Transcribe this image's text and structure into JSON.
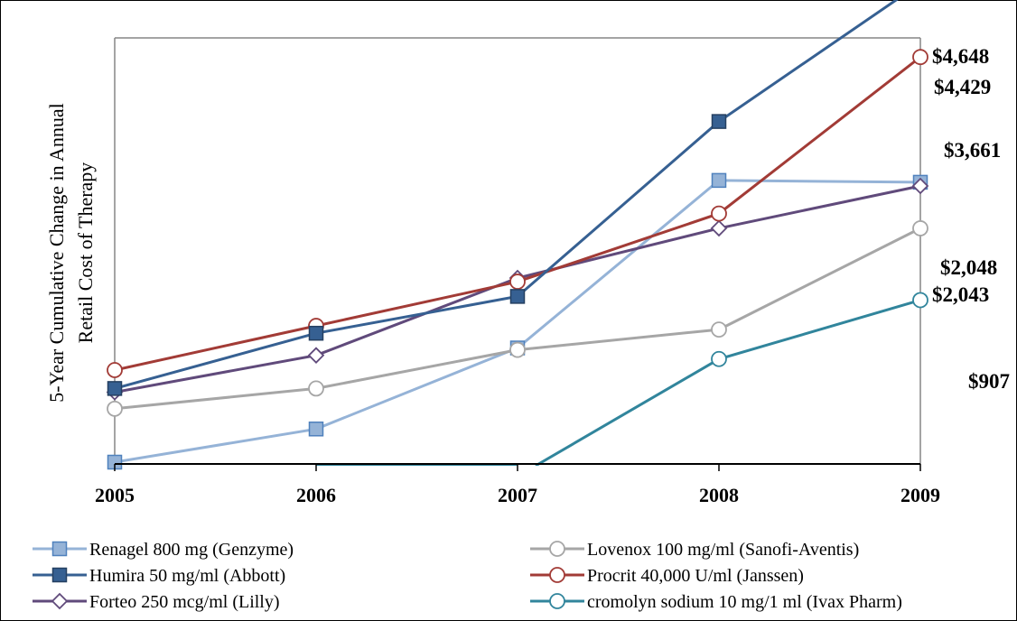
{
  "chart_data": {
    "type": "line",
    "ylabel_lines": [
      "5-Year Cumulative Change in Annual",
      "Retail Cost of Therapy"
    ],
    "x": [
      "2005",
      "2006",
      "2007",
      "2008",
      "2009"
    ],
    "ylim": [
      -1,
      1
    ],
    "grid": false,
    "legend_position": "bottom",
    "series": [
      {
        "name": "Renagel 800 mg (Genzyme)",
        "values": [
          -1,
          -0.82,
          -0.38,
          0.53,
          0.52
        ],
        "color": "#95b3d7",
        "marker": "square-filled",
        "marker_fill": "#95b3d7",
        "marker_stroke": "#4f81bd",
        "end_label": "$2,048"
      },
      {
        "name": "Lovenox 100 mg/ml (Sanofi-Aventis)",
        "values": [
          -0.71,
          -0.6,
          -0.39,
          -0.28,
          0.27
        ],
        "color": "#a6a6a6",
        "marker": "circle-open",
        "marker_fill": "#ffffff",
        "marker_stroke": "#a6a6a6",
        "end_label": "$2,043"
      },
      {
        "name": "Humira 50 mg/ml (Abbott)",
        "values": [
          -0.6,
          -0.3,
          -0.1,
          0.85,
          1.6
        ],
        "color": "#366092",
        "marker": "square-filled",
        "marker_fill": "#366092",
        "marker_stroke": "#254061",
        "end_label": "$4,648"
      },
      {
        "name": "Procrit 40,000 U/ml (Janssen)",
        "values": [
          -0.5,
          -0.26,
          -0.02,
          0.35,
          1.2
        ],
        "color": "#a23b36",
        "marker": "circle-open",
        "marker_fill": "#ffffff",
        "marker_stroke": "#a23b36",
        "end_label": "$4,429"
      },
      {
        "name": "Forteo 250 mcg/ml (Lilly)",
        "values": [
          -0.62,
          -0.42,
          0,
          0.27,
          0.5
        ],
        "color": "#604a7b",
        "marker": "diamond-open",
        "marker_fill": "#ffffff",
        "marker_stroke": "#604a7b",
        "end_label": "$3,661"
      },
      {
        "name": "cromolyn sodium 10 mg/1 ml (Ivax Pharm)",
        "values": [
          null,
          null,
          -1,
          -0.44,
          -0.12
        ],
        "color": "#31859c",
        "marker": "circle-open",
        "marker_fill": "#ffffff",
        "marker_stroke": "#31859c",
        "end_label": "$907"
      }
    ]
  }
}
